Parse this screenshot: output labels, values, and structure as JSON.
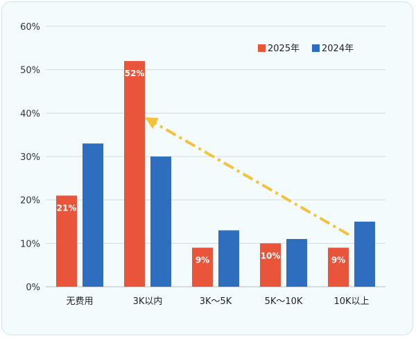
{
  "chart_data": {
    "type": "bar",
    "categories": [
      "无费用",
      "3K以内",
      "3K～5K",
      "5K～10K",
      "10K以上"
    ],
    "series": [
      {
        "name": "2025年",
        "values": [
          21,
          52,
          9,
          10,
          9
        ],
        "color": "#e8553a"
      },
      {
        "name": "2024年",
        "values": [
          33,
          30,
          13,
          11,
          15
        ],
        "color": "#2f6ebf"
      }
    ],
    "data_labels": [
      "21%",
      "52%",
      "9%",
      "10%",
      "9%"
    ],
    "ylim": [
      0,
      60
    ],
    "yticks": [
      "0%",
      "10%",
      "20%",
      "30%",
      "40%",
      "50%",
      "60%"
    ],
    "grid": true,
    "legend_position": "top-right",
    "annotation": {
      "type": "dashed-arrow",
      "color": "#f3c23d",
      "from_category": "10K以上",
      "to_category": "3K以内",
      "from_value": 12,
      "to_value": 40
    }
  }
}
